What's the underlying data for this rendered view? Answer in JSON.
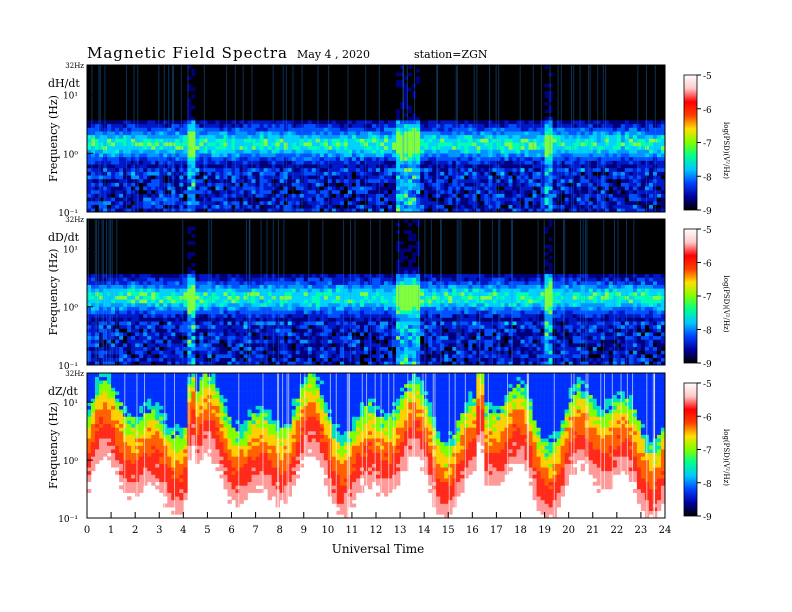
{
  "header": {
    "title": "Magnetic  Field  Spectra",
    "date": "May 4  , 2020",
    "station": "station=ZGN"
  },
  "chart_data": {
    "type": "heatmap",
    "title": "Magnetic  Field  Spectra",
    "xlabel": "Universal  Time",
    "x_ticks": [
      "0",
      "1",
      "2",
      "3",
      "4",
      "5",
      "6",
      "7",
      "8",
      "9",
      "10",
      "11",
      "12",
      "13",
      "14",
      "15",
      "16",
      "17",
      "18",
      "19",
      "20",
      "21",
      "22",
      "23",
      "24"
    ],
    "xlim": [
      0,
      24
    ],
    "ylabel": "Frequency  (Hz)",
    "y_scale": "log",
    "ylim": [
      0.1,
      32
    ],
    "y_top_label": "32Hz",
    "y_tick_labels": [
      "10¹",
      "10⁰",
      "10⁻¹"
    ],
    "colorbar": {
      "label": "log(PSD)(V²/Hz)",
      "range": [
        -9,
        -5
      ],
      "ticks": [
        "-5",
        "-6",
        "-7",
        "-8",
        "-9"
      ],
      "colors": [
        "#000000",
        "#0000a0",
        "#0044ff",
        "#00c8ff",
        "#00ff90",
        "#80ff00",
        "#ffe000",
        "#ff4000",
        "#ff0000",
        "#ffc8c8",
        "#ffffff"
      ]
    },
    "panels": [
      {
        "name": "dH/dt",
        "style": "quiet",
        "bright_hours": [
          4.2,
          12.9,
          13.2,
          13.5,
          19.1
        ]
      },
      {
        "name": "dD/dt",
        "style": "quiet",
        "bright_hours": [
          4.2,
          12.9,
          13.2,
          13.5,
          19.1
        ]
      },
      {
        "name": "dZ/dt",
        "style": "strong",
        "bright_hours": [
          4.2,
          16.3
        ]
      }
    ]
  }
}
